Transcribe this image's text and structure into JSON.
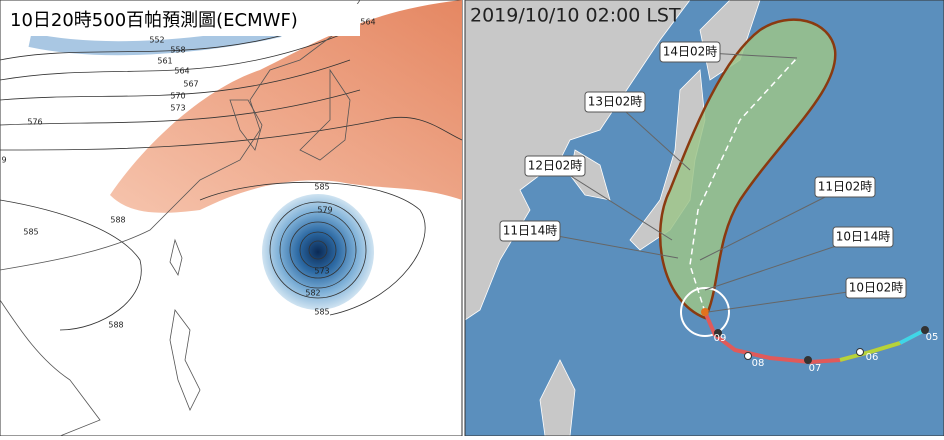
{
  "left_panel": {
    "title": "10日20時500百帕預測圖(ECMWF)",
    "contour_labels": [
      "552",
      "558",
      "561",
      "564",
      "567",
      "570",
      "573",
      "576",
      "9",
      "588",
      "585",
      "585",
      "579",
      "573",
      "582",
      "585",
      "588",
      "564"
    ]
  },
  "right_panel": {
    "timestamp": "2019/10/10 02:00 LST",
    "forecast_labels": [
      "14日02時",
      "13日02時",
      "12日02時",
      "11日02時",
      "11日14時",
      "10日14時",
      "10日02時"
    ],
    "track_labels": [
      "05",
      "06",
      "07",
      "08",
      "09"
    ]
  }
}
